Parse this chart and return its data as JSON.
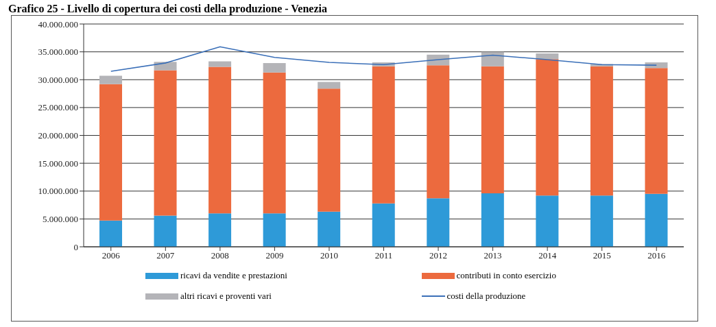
{
  "chart_data": {
    "type": "bar",
    "title": "Grafico 25 - Livello di copertura dei costi della produzione - Venezia",
    "stacked": true,
    "categories": [
      "2006",
      "2007",
      "2008",
      "2009",
      "2010",
      "2011",
      "2012",
      "2013",
      "2014",
      "2015",
      "2016"
    ],
    "series": [
      {
        "name": "ricavi da vendite e prestazioni",
        "color": "#2e9ad8",
        "values": [
          4700000,
          5600000,
          6000000,
          6000000,
          6300000,
          7800000,
          8700000,
          9600000,
          9200000,
          9200000,
          9500000
        ]
      },
      {
        "name": "contributi in conto esercizio",
        "color": "#ec6a3e",
        "values": [
          24500000,
          26100000,
          26300000,
          25300000,
          22100000,
          24600000,
          23900000,
          22800000,
          24500000,
          23200000,
          22600000
        ]
      },
      {
        "name": "altri ricavi e proventi vari",
        "color": "#b4b4b8",
        "values": [
          1500000,
          1500000,
          1000000,
          1700000,
          1200000,
          700000,
          1900000,
          2600000,
          1000000,
          400000,
          1000000
        ]
      },
      {
        "name": "costi della produzione",
        "type": "line",
        "color": "#3a6fb8",
        "values": [
          31500000,
          33000000,
          35900000,
          34000000,
          33100000,
          32700000,
          33600000,
          34400000,
          33600000,
          32700000,
          32600000
        ]
      }
    ],
    "ylim": [
      0,
      40000000
    ],
    "yticks": [
      {
        "value": 0,
        "label": "0"
      },
      {
        "value": 5000000,
        "label": "5.000.000"
      },
      {
        "value": 10000000,
        "label": "10.000.000"
      },
      {
        "value": 15000000,
        "label": "15.000.000"
      },
      {
        "value": 20000000,
        "label": "20.000.000"
      },
      {
        "value": 25000000,
        "label": "25.000.000"
      },
      {
        "value": 30000000,
        "label": "30.000.000"
      },
      {
        "value": 35000000,
        "label": "35.000.000"
      },
      {
        "value": 40000000,
        "label": "40.000.000"
      }
    ],
    "grid": "y",
    "legend": "bottom",
    "marker": "none",
    "line_style": "solid"
  }
}
